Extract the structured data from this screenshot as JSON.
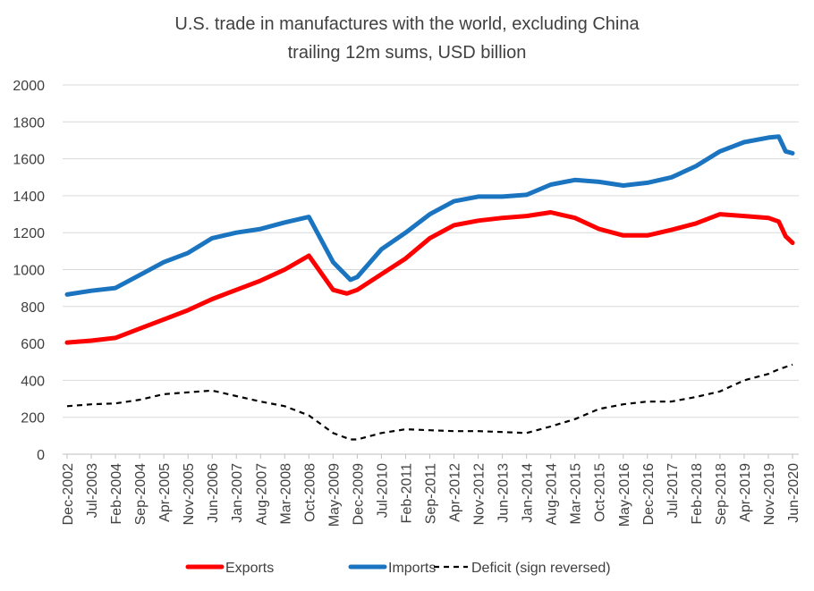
{
  "chart_data": {
    "type": "line",
    "title": "U.S. trade in manufactures with the world, excluding China",
    "subtitle": "trailing 12m sums, USD billion",
    "ylim": [
      0,
      2000
    ],
    "y_ticks": [
      "0",
      "200",
      "400",
      "600",
      "800",
      "1000",
      "1200",
      "1400",
      "1600",
      "1800",
      "2000"
    ],
    "x_ticks": [
      "Dec-2002",
      "Jul-2003",
      "Feb-2004",
      "Sep-2004",
      "Apr-2005",
      "Nov-2005",
      "Jun-2006",
      "Jan-2007",
      "Aug-2007",
      "Mar-2008",
      "Oct-2008",
      "May-2009",
      "Dec-2009",
      "Jul-2010",
      "Feb-2011",
      "Sep-2011",
      "Apr-2012",
      "Nov-2012",
      "Jun-2013",
      "Jan-2014",
      "Aug-2014",
      "Mar-2015",
      "Oct-2015",
      "May-2016",
      "Dec-2016",
      "Jul-2017",
      "Feb-2018",
      "Sep-2018",
      "Apr-2019",
      "Nov-2019",
      "Jun-2020"
    ],
    "grid": true,
    "legend_position": "bottom",
    "series": [
      {
        "name": "Exports",
        "color": "#ff0000",
        "style": "solid",
        "points": [
          [
            "2002-12",
            605
          ],
          [
            "2003-07",
            615
          ],
          [
            "2004-02",
            630
          ],
          [
            "2004-09",
            680
          ],
          [
            "2005-04",
            730
          ],
          [
            "2005-11",
            780
          ],
          [
            "2006-06",
            840
          ],
          [
            "2007-01",
            890
          ],
          [
            "2007-08",
            940
          ],
          [
            "2008-03",
            1000
          ],
          [
            "2008-10",
            1075
          ],
          [
            "2009-05",
            890
          ],
          [
            "2009-09",
            870
          ],
          [
            "2009-12",
            890
          ],
          [
            "2010-07",
            975
          ],
          [
            "2011-02",
            1060
          ],
          [
            "2011-09",
            1170
          ],
          [
            "2012-04",
            1240
          ],
          [
            "2012-11",
            1265
          ],
          [
            "2013-06",
            1280
          ],
          [
            "2014-01",
            1290
          ],
          [
            "2014-08",
            1310
          ],
          [
            "2015-03",
            1280
          ],
          [
            "2015-10",
            1220
          ],
          [
            "2016-05",
            1185
          ],
          [
            "2016-12",
            1185
          ],
          [
            "2017-07",
            1215
          ],
          [
            "2018-02",
            1250
          ],
          [
            "2018-09",
            1300
          ],
          [
            "2019-04",
            1290
          ],
          [
            "2019-11",
            1280
          ],
          [
            "2020-02",
            1260
          ],
          [
            "2020-04",
            1180
          ],
          [
            "2020-06",
            1145
          ]
        ]
      },
      {
        "name": "Imports",
        "color": "#1a74c0",
        "style": "solid",
        "points": [
          [
            "2002-12",
            865
          ],
          [
            "2003-07",
            885
          ],
          [
            "2004-02",
            900
          ],
          [
            "2004-09",
            970
          ],
          [
            "2005-04",
            1040
          ],
          [
            "2005-11",
            1090
          ],
          [
            "2006-06",
            1170
          ],
          [
            "2007-01",
            1200
          ],
          [
            "2007-08",
            1220
          ],
          [
            "2008-03",
            1255
          ],
          [
            "2008-10",
            1285
          ],
          [
            "2009-05",
            1040
          ],
          [
            "2009-10",
            945
          ],
          [
            "2009-12",
            960
          ],
          [
            "2010-07",
            1110
          ],
          [
            "2011-02",
            1200
          ],
          [
            "2011-09",
            1300
          ],
          [
            "2012-04",
            1370
          ],
          [
            "2012-11",
            1395
          ],
          [
            "2013-06",
            1395
          ],
          [
            "2014-01",
            1405
          ],
          [
            "2014-08",
            1460
          ],
          [
            "2015-03",
            1485
          ],
          [
            "2015-10",
            1475
          ],
          [
            "2016-05",
            1455
          ],
          [
            "2016-12",
            1470
          ],
          [
            "2017-07",
            1500
          ],
          [
            "2018-02",
            1560
          ],
          [
            "2018-09",
            1640
          ],
          [
            "2019-04",
            1690
          ],
          [
            "2019-11",
            1715
          ],
          [
            "2020-02",
            1720
          ],
          [
            "2020-04",
            1640
          ],
          [
            "2020-06",
            1630
          ]
        ]
      },
      {
        "name": "Deficit (sign reversed)",
        "color": "#000000",
        "style": "dashed",
        "points": [
          [
            "2002-12",
            260
          ],
          [
            "2003-07",
            270
          ],
          [
            "2004-02",
            275
          ],
          [
            "2004-09",
            295
          ],
          [
            "2005-04",
            325
          ],
          [
            "2005-11",
            335
          ],
          [
            "2006-06",
            345
          ],
          [
            "2007-01",
            315
          ],
          [
            "2007-08",
            285
          ],
          [
            "2008-03",
            260
          ],
          [
            "2008-10",
            210
          ],
          [
            "2009-05",
            115
          ],
          [
            "2009-10",
            80
          ],
          [
            "2009-12",
            80
          ],
          [
            "2010-07",
            115
          ],
          [
            "2011-02",
            135
          ],
          [
            "2011-09",
            130
          ],
          [
            "2012-04",
            125
          ],
          [
            "2012-11",
            125
          ],
          [
            "2013-06",
            120
          ],
          [
            "2014-01",
            115
          ],
          [
            "2014-08",
            150
          ],
          [
            "2015-03",
            190
          ],
          [
            "2015-10",
            245
          ],
          [
            "2016-05",
            270
          ],
          [
            "2016-12",
            285
          ],
          [
            "2017-07",
            285
          ],
          [
            "2018-02",
            310
          ],
          [
            "2018-09",
            340
          ],
          [
            "2019-04",
            400
          ],
          [
            "2019-11",
            435
          ],
          [
            "2020-02",
            460
          ],
          [
            "2020-06",
            485
          ]
        ]
      }
    ]
  }
}
